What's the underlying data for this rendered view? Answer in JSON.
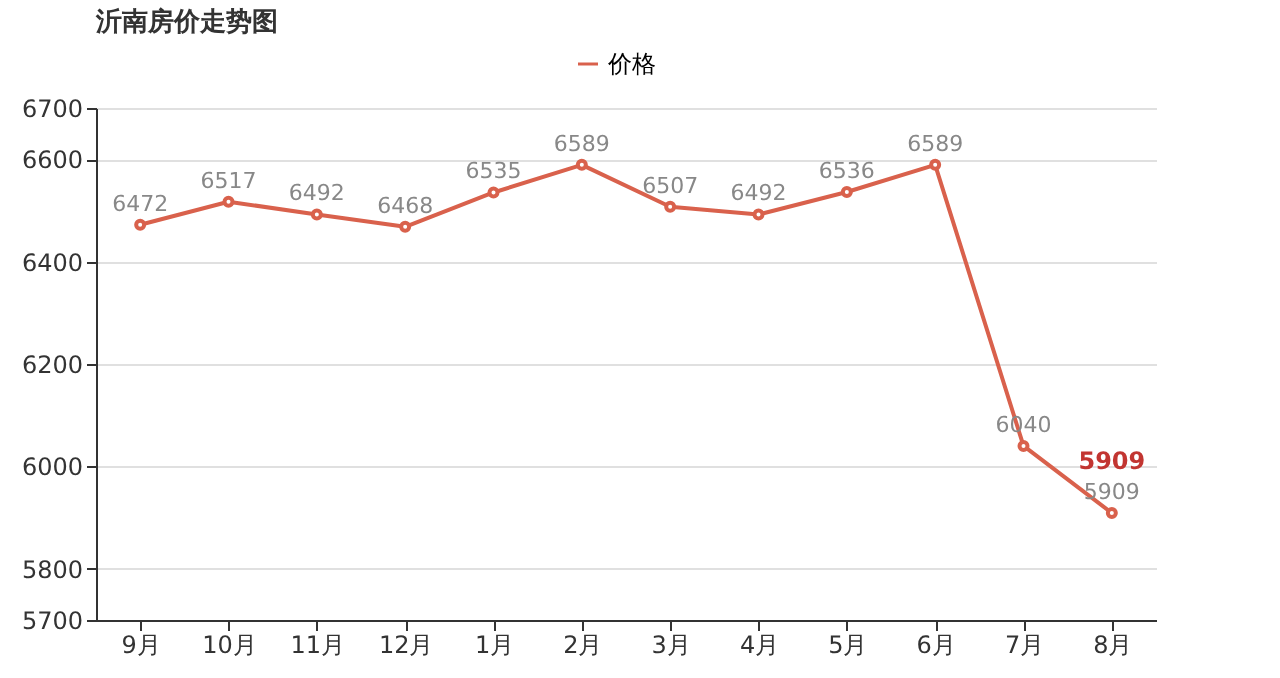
{
  "chart_data": {
    "type": "line",
    "title": "沂南房价走势图",
    "categories": [
      "9月",
      "10月",
      "11月",
      "12月",
      "1月",
      "2月",
      "3月",
      "4月",
      "5月",
      "6月",
      "7月",
      "8月"
    ],
    "series": [
      {
        "name": "价格",
        "color": "#d9614c",
        "values": [
          6472,
          6517,
          6492,
          6468,
          6535,
          6589,
          6507,
          6492,
          6536,
          6589,
          6040,
          5909
        ]
      }
    ],
    "ylim": [
      5700,
      6700
    ],
    "yticks": [
      5700,
      5800,
      6000,
      6200,
      6400,
      6600,
      6700
    ],
    "grid": "y",
    "legend": "top",
    "marker": "circle",
    "data_labels": true,
    "annotations": [
      {
        "text": "5909",
        "x": "8月",
        "y": 5909
      }
    ]
  }
}
